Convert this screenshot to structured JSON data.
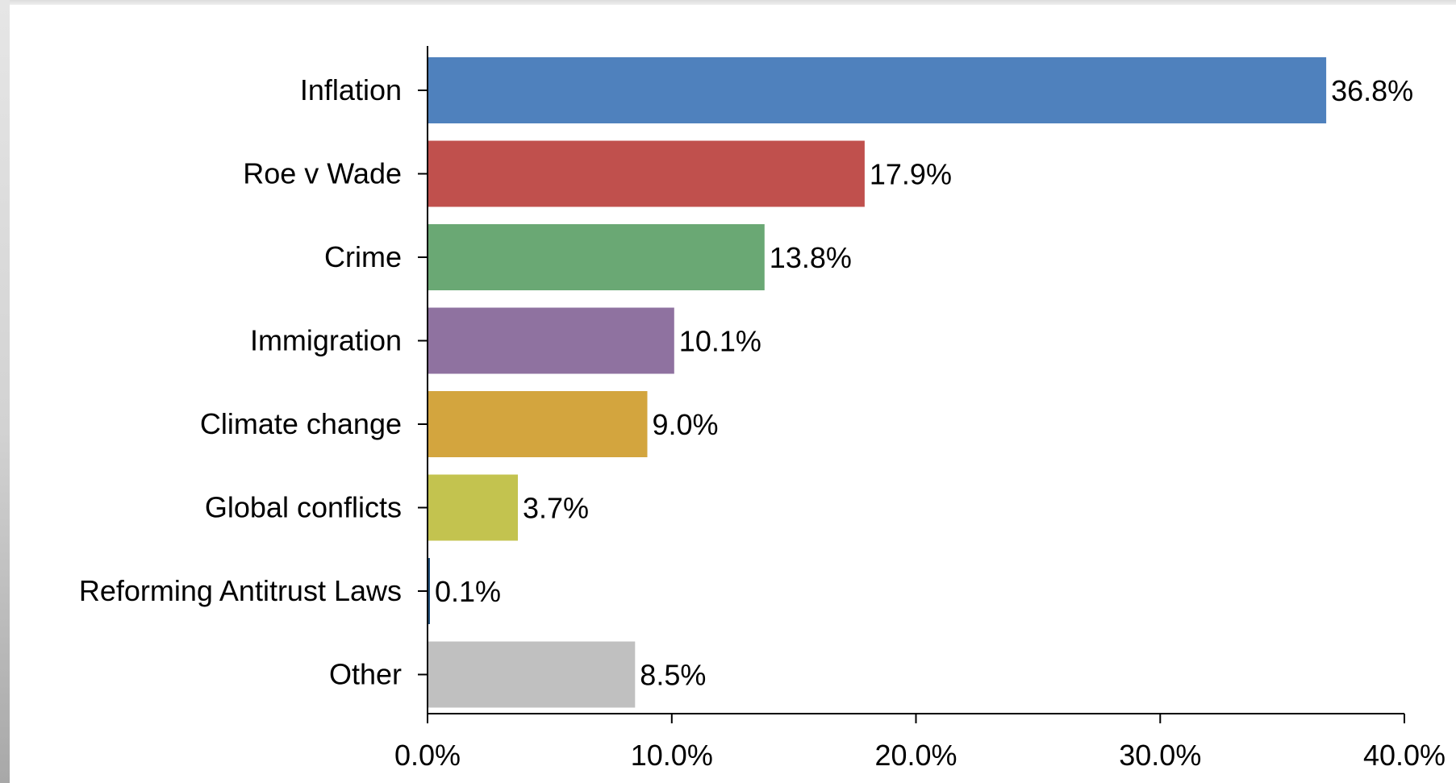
{
  "chart_data": {
    "type": "bar",
    "orientation": "horizontal",
    "categories": [
      "Inflation",
      "Roe v Wade",
      "Crime",
      "Immigration",
      "Climate change",
      "Global conflicts",
      "Reforming Antitrust Laws",
      "Other"
    ],
    "values": [
      36.8,
      17.9,
      13.8,
      10.1,
      9.0,
      3.7,
      0.1,
      8.5
    ],
    "value_labels": [
      "36.8%",
      "17.9%",
      "13.8%",
      "10.1%",
      "9.0%",
      "3.7%",
      "0.1%",
      "8.5%"
    ],
    "colors": [
      "#4f81bd",
      "#c0504d",
      "#6aa874",
      "#8f72a0",
      "#d3a53e",
      "#c3c34f",
      "#1f4e79",
      "#c0c0c0"
    ],
    "xticks": [
      0,
      10,
      20,
      30,
      40
    ],
    "xtick_labels": [
      "0.0%",
      "10.0%",
      "20.0%",
      "30.0%",
      "40.0%"
    ],
    "xlim": [
      0,
      40
    ],
    "title": "",
    "xlabel": "",
    "ylabel": "",
    "grid": false,
    "legend": "none"
  }
}
